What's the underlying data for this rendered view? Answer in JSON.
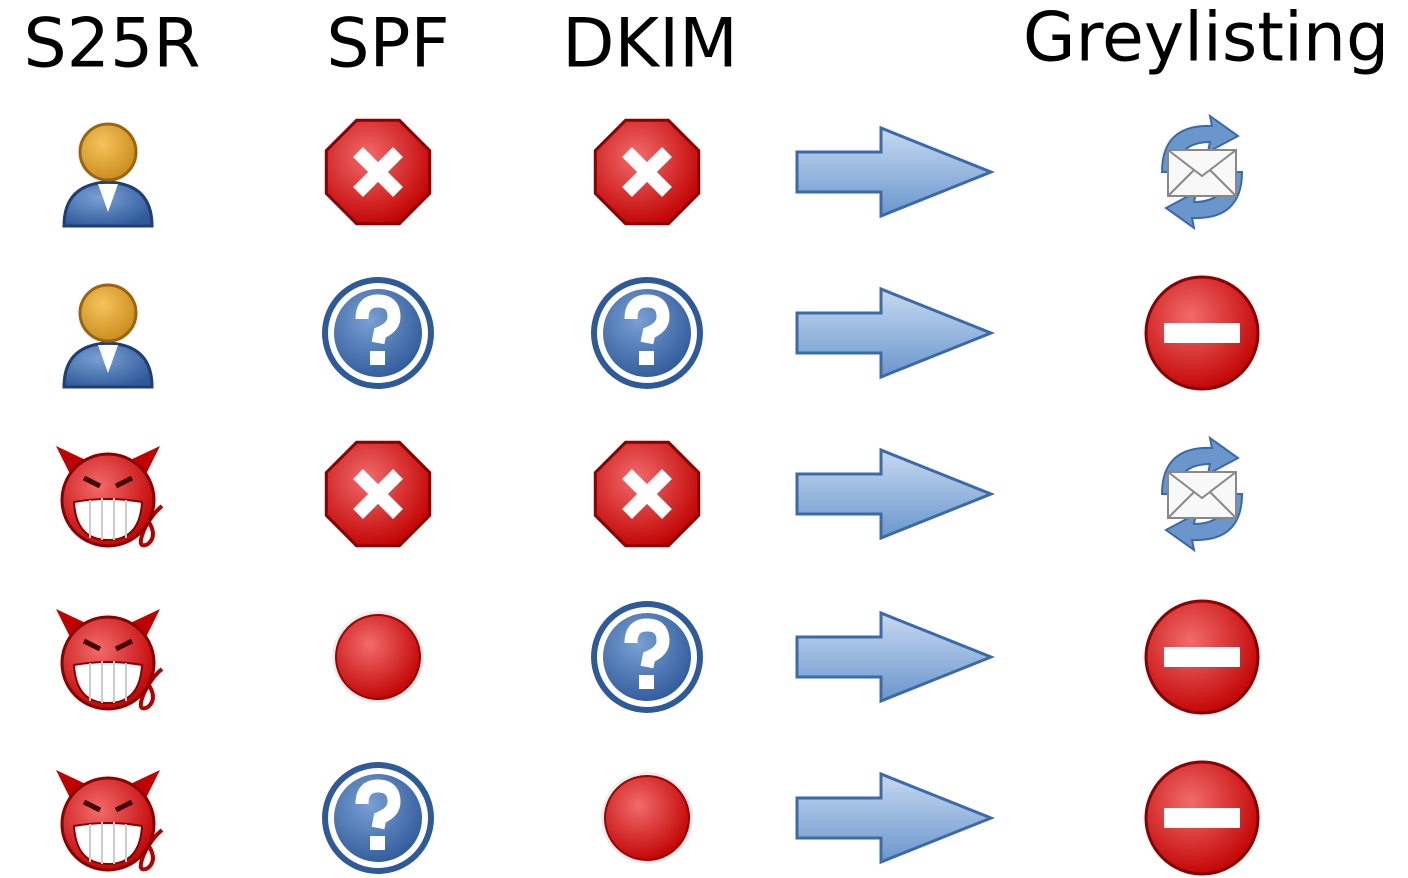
{
  "header": {
    "columns": [
      "S25R",
      "SPF",
      "DKIM",
      "Greylisting"
    ]
  }
}
